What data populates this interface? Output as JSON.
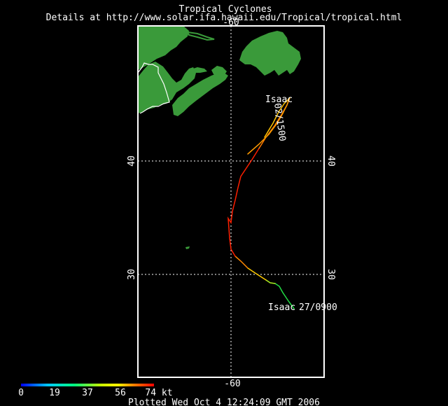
{
  "header": {
    "title": "Tropical Cyclones",
    "details": "Details at http://www.solar.ifa.hawaii.edu/Tropical/tropical.html"
  },
  "footer": {
    "plotted": "Plotted Wed Oct 4 12:24:09 GMT 2006"
  },
  "map": {
    "grid_labels": {
      "lon_top": "-60",
      "lon_bottom": "-60",
      "lat_40_left": "40",
      "lat_40_right": "40",
      "lat_30_left": "30",
      "lat_30_right": "30"
    },
    "colors": {
      "land": "#3a9a3a",
      "border": "#ffffff",
      "grid": "#ffffff",
      "background": "#000000"
    }
  },
  "storm": {
    "name_start": "Isaac",
    "time_start": "27/0900",
    "name_end": "Isaac",
    "time_end": "02/1500"
  },
  "legend": {
    "ticks": [
      "0",
      "19",
      "37",
      "56",
      "74 kt"
    ],
    "gradient": [
      "#0000ff",
      "#00c8ff",
      "#00ff80",
      "#c8ff00",
      "#ffff00",
      "#ff8000",
      "#ff0000"
    ]
  }
}
